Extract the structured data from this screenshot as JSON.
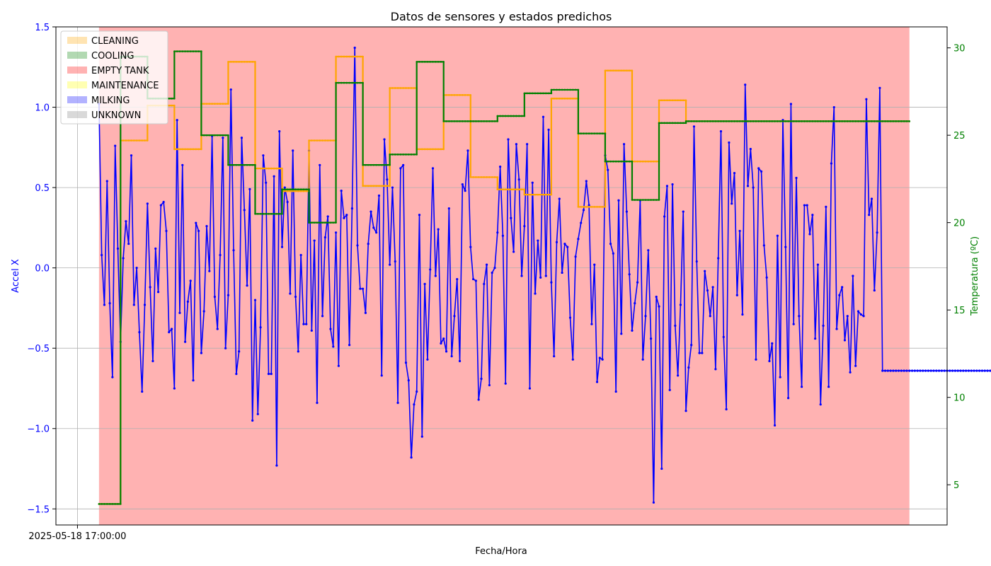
{
  "chart_data": {
    "type": "line",
    "title": "Datos de sensores y estados predichos",
    "xlabel": "Fecha/Hora",
    "ylabel_left": "Accel X",
    "ylabel_right": "Temperatura (ºC)",
    "x_tick_labels": [
      "2025-05-18 17:00:00"
    ],
    "y_left_range": [
      -1.6,
      1.5
    ],
    "y_left_ticks": [
      -1.5,
      -1.0,
      -0.5,
      0.0,
      0.5,
      1.0,
      1.5
    ],
    "y_left_tick_labels": [
      "−1.5",
      "−1.0",
      "−0.5",
      "0.0",
      "0.5",
      "1.0",
      "1.5"
    ],
    "y_right_range": [
      2.7,
      31.2
    ],
    "y_right_ticks": [
      5,
      10,
      15,
      20,
      25,
      30
    ],
    "y_right_tick_labels": [
      "5",
      "10",
      "15",
      "20",
      "25",
      "30"
    ],
    "x_domain": [
      -16,
      315
    ],
    "x_tick_positions": [
      -8
    ],
    "grid": true,
    "legend_position": "top-left",
    "legend": [
      {
        "label": "CLEANING",
        "color": "#ffa500",
        "alpha": 0.3
      },
      {
        "label": "COOLING",
        "color": "#008000",
        "alpha": 0.3
      },
      {
        "label": "EMPTY TANK",
        "color": "#ff0000",
        "alpha": 0.3
      },
      {
        "label": "MAINTENANCE",
        "color": "#ffff00",
        "alpha": 0.3
      },
      {
        "label": "MILKING",
        "color": "#0000ff",
        "alpha": 0.3
      },
      {
        "label": "UNKNOWN",
        "color": "#808080",
        "alpha": 0.3
      }
    ],
    "state_spans": [
      {
        "state": "EMPTY TANK",
        "start": 0,
        "end": 301
      }
    ],
    "series": [
      {
        "name": "Accel X",
        "axis": "left",
        "color": "#0000ff",
        "values": [
          1.02,
          0.08,
          -0.23,
          0.54,
          -0.22,
          -0.68,
          0.76,
          0.12,
          -0.46,
          0.06,
          0.29,
          0.15,
          0.7,
          -0.23,
          0.0,
          -0.4,
          -0.77,
          -0.23,
          0.4,
          -0.12,
          -0.58,
          0.12,
          -0.15,
          0.39,
          0.41,
          0.23,
          -0.4,
          -0.38,
          -0.75,
          0.92,
          -0.28,
          0.64,
          -0.46,
          -0.21,
          -0.08,
          -0.7,
          0.28,
          0.23,
          -0.53,
          -0.27,
          0.26,
          -0.02,
          0.82,
          -0.18,
          -0.38,
          0.08,
          0.81,
          -0.5,
          -0.17,
          1.11,
          0.11,
          -0.66,
          -0.52,
          0.81,
          0.36,
          -0.11,
          0.49,
          -0.95,
          -0.2,
          -0.91,
          -0.37,
          0.7,
          0.53,
          -0.66,
          -0.66,
          0.57,
          -1.23,
          0.85,
          0.13,
          0.5,
          0.41,
          -0.16,
          0.73,
          -0.18,
          -0.52,
          0.08,
          -0.35,
          -0.35,
          0.73,
          -0.39,
          0.17,
          -0.84,
          0.64,
          -0.3,
          0.19,
          0.32,
          -0.38,
          -0.49,
          0.22,
          -0.61,
          0.48,
          0.31,
          0.33,
          -0.48,
          0.37,
          1.37,
          0.14,
          -0.13,
          -0.13,
          -0.28,
          0.15,
          0.35,
          0.25,
          0.22,
          0.45,
          -0.67,
          0.8,
          0.55,
          0.02,
          0.5,
          0.04,
          -0.84,
          0.62,
          0.64,
          -0.59,
          -0.7,
          -1.18,
          -0.85,
          -0.77,
          0.33,
          -1.05,
          -0.1,
          -0.57,
          -0.01,
          0.62,
          -0.05,
          0.24,
          -0.47,
          -0.44,
          -0.52,
          0.37,
          -0.55,
          -0.3,
          -0.07,
          -0.58,
          0.52,
          0.48,
          0.73,
          0.13,
          -0.07,
          -0.08,
          -0.82,
          -0.69,
          -0.1,
          0.02,
          -0.73,
          -0.03,
          0.0,
          0.22,
          0.63,
          0.2,
          -0.72,
          0.8,
          0.31,
          0.1,
          0.77,
          0.55,
          -0.05,
          0.26,
          0.77,
          -0.75,
          0.53,
          -0.16,
          0.17,
          -0.06,
          0.94,
          -0.05,
          0.86,
          -0.09,
          -0.55,
          0.16,
          0.43,
          -0.03,
          0.15,
          0.13,
          -0.31,
          -0.57,
          0.07,
          0.18,
          0.28,
          0.36,
          0.54,
          0.39,
          -0.35,
          0.02,
          -0.71,
          -0.56,
          -0.57,
          0.7,
          0.61,
          0.15,
          0.09,
          -0.77,
          0.42,
          -0.41,
          0.77,
          0.35,
          -0.04,
          -0.39,
          -0.22,
          -0.09,
          0.42,
          -0.57,
          -0.3,
          0.11,
          -0.44,
          -1.46,
          -0.18,
          -0.24,
          -1.25,
          0.32,
          0.51,
          -0.76,
          0.52,
          -0.36,
          -0.67,
          -0.23,
          0.35,
          -0.89,
          -0.62,
          -0.48,
          0.88,
          0.04,
          -0.53,
          -0.53,
          -0.02,
          -0.14,
          -0.3,
          -0.12,
          -0.63,
          0.06,
          0.85,
          -0.43,
          -0.88,
          0.78,
          0.4,
          0.59,
          -0.17,
          0.23,
          -0.29,
          1.14,
          0.51,
          0.74,
          0.5,
          -0.57,
          0.62,
          0.6,
          0.14,
          -0.06,
          -0.58,
          -0.47,
          -0.98,
          0.2,
          -0.68,
          0.92,
          0.13,
          -0.81,
          1.02,
          -0.35,
          0.56,
          -0.3,
          -0.74,
          0.39,
          0.39,
          0.21,
          0.33,
          -0.44,
          0.02,
          -0.85,
          -0.36,
          0.38,
          -0.74,
          0.65,
          1.0,
          -0.38,
          -0.17,
          -0.12,
          -0.45,
          -0.3,
          -0.65,
          -0.05,
          -0.61,
          -0.27,
          -0.29,
          -0.3,
          1.05,
          0.33,
          0.43,
          -0.14,
          0.22,
          1.12,
          -0.64,
          -0.64,
          -0.64,
          -0.64,
          -0.64,
          -0.64,
          -0.64,
          -0.64,
          -0.64,
          -0.64,
          -0.64,
          -0.64,
          -0.64,
          -0.64,
          -0.64,
          -0.64,
          -0.64,
          -0.64,
          -0.64,
          -0.64,
          -0.64,
          -0.64,
          -0.64,
          -0.64,
          -0.64,
          -0.64,
          -0.64,
          -0.64,
          -0.64,
          -0.64,
          -0.64,
          -0.64,
          -0.64,
          -0.64,
          -0.64,
          -0.64,
          -0.64,
          -0.64,
          -0.64,
          -0.64,
          -0.64,
          -0.64,
          -0.64,
          -0.64,
          -0.64,
          -0.64,
          -0.64,
          -0.64,
          -0.64,
          -0.64,
          -0.64,
          -0.64,
          -0.64,
          -0.64
        ]
      },
      {
        "name": "Temperatura (estado A)",
        "axis": "right",
        "color": "#ffa500",
        "segments": [
          [
            0,
            8,
            3.9
          ],
          [
            8,
            18,
            24.7
          ],
          [
            18,
            28,
            26.7
          ],
          [
            28,
            38,
            24.2
          ],
          [
            38,
            48,
            26.8
          ],
          [
            48,
            58,
            29.2
          ],
          [
            58,
            68,
            23.1
          ],
          [
            68,
            78,
            21.8
          ],
          [
            78,
            88,
            24.7
          ],
          [
            88,
            98,
            29.5
          ],
          [
            98,
            108,
            22.1
          ],
          [
            108,
            118,
            27.7
          ],
          [
            118,
            128,
            24.2
          ],
          [
            128,
            138,
            27.3
          ],
          [
            138,
            148,
            22.6
          ],
          [
            148,
            158,
            21.9
          ],
          [
            158,
            168,
            21.6
          ],
          [
            168,
            178,
            27.1
          ],
          [
            178,
            188,
            20.9
          ],
          [
            188,
            198,
            28.7
          ],
          [
            198,
            208,
            23.5
          ],
          [
            208,
            218,
            27.0
          ],
          [
            218,
            301,
            25.8
          ]
        ]
      },
      {
        "name": "Temperatura (estado B)",
        "axis": "right",
        "color": "#008000",
        "segments": [
          [
            0,
            8,
            3.9
          ],
          [
            8,
            18,
            29.5
          ],
          [
            18,
            28,
            27.1
          ],
          [
            28,
            38,
            29.8
          ],
          [
            38,
            48,
            25.0
          ],
          [
            48,
            58,
            23.3
          ],
          [
            58,
            68,
            20.5
          ],
          [
            68,
            78,
            21.9
          ],
          [
            78,
            88,
            20.0
          ],
          [
            88,
            98,
            28.0
          ],
          [
            98,
            108,
            23.3
          ],
          [
            108,
            118,
            23.9
          ],
          [
            118,
            128,
            29.2
          ],
          [
            128,
            138,
            25.8
          ],
          [
            138,
            148,
            25.8
          ],
          [
            148,
            158,
            26.1
          ],
          [
            158,
            168,
            27.4
          ],
          [
            168,
            178,
            27.6
          ],
          [
            178,
            188,
            25.1
          ],
          [
            188,
            198,
            23.5
          ],
          [
            198,
            208,
            21.3
          ],
          [
            208,
            218,
            25.7
          ],
          [
            218,
            301,
            25.8
          ]
        ]
      }
    ]
  }
}
